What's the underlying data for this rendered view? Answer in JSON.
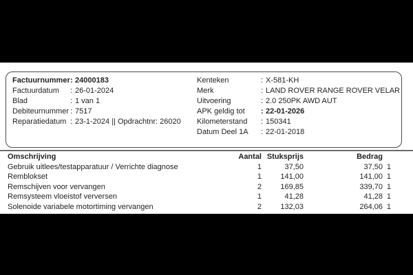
{
  "separators": {
    "colon": ":"
  },
  "invoice_box": {
    "left": [
      {
        "label": "Factuurnummer",
        "value": "24000183"
      },
      {
        "label": "Factuurdatum",
        "value": "26-01-2024"
      },
      {
        "label": "Blad",
        "value": "1 van 1"
      },
      {
        "label": "Debiteurnummer",
        "value": "7517"
      },
      {
        "label": "Reparatiedatum",
        "value": "23-1-2024 || Opdrachtnr: 26020"
      }
    ],
    "right": [
      {
        "label": "Kenteken",
        "value": "X-581-KH"
      },
      {
        "label": "Merk",
        "value": "LAND ROVER RANGE ROVER VELAR"
      },
      {
        "label": "Uitvoering",
        "value": "2.0 250PK AWD AUT"
      },
      {
        "label": "APK geldig tot",
        "value": "22-01-2026"
      },
      {
        "label": "Kilometerstand",
        "value": "150341"
      },
      {
        "label": "Datum Deel 1A",
        "value": "22-01-2018"
      }
    ]
  },
  "items_table": {
    "headers": {
      "description": "Omschrijving",
      "quantity": "Aantal",
      "unit_price": "Stuksprijs",
      "amount": "Bedrag"
    },
    "rows": [
      {
        "description": "Gebruik uitlees/testapparatuur / Verrichte diagnose",
        "quantity": "1",
        "unit_price": "37,50",
        "amount": "37,50",
        "vat_code": "1"
      },
      {
        "description": "Remblokset",
        "quantity": "1",
        "unit_price": "141,00",
        "amount": "141,00",
        "vat_code": "1"
      },
      {
        "description": "Remschijven voor vervangen",
        "quantity": "2",
        "unit_price": "169,85",
        "amount": "339,70",
        "vat_code": "1"
      },
      {
        "description": "Remsysteem vloeistof verversen",
        "quantity": "1",
        "unit_price": "41,28",
        "amount": "41,28",
        "vat_code": "1"
      },
      {
        "description": "Solenoide variabele motortiming vervangen",
        "quantity": "2",
        "unit_price": "132,03",
        "amount": "264,06",
        "vat_code": "1"
      }
    ]
  },
  "colors": {
    "page_background": "#000000",
    "sheet_background": "#ffffff",
    "text": "#1f1f1f",
    "box_border": "#4a4a4a",
    "rule": "#6b6b6b"
  }
}
